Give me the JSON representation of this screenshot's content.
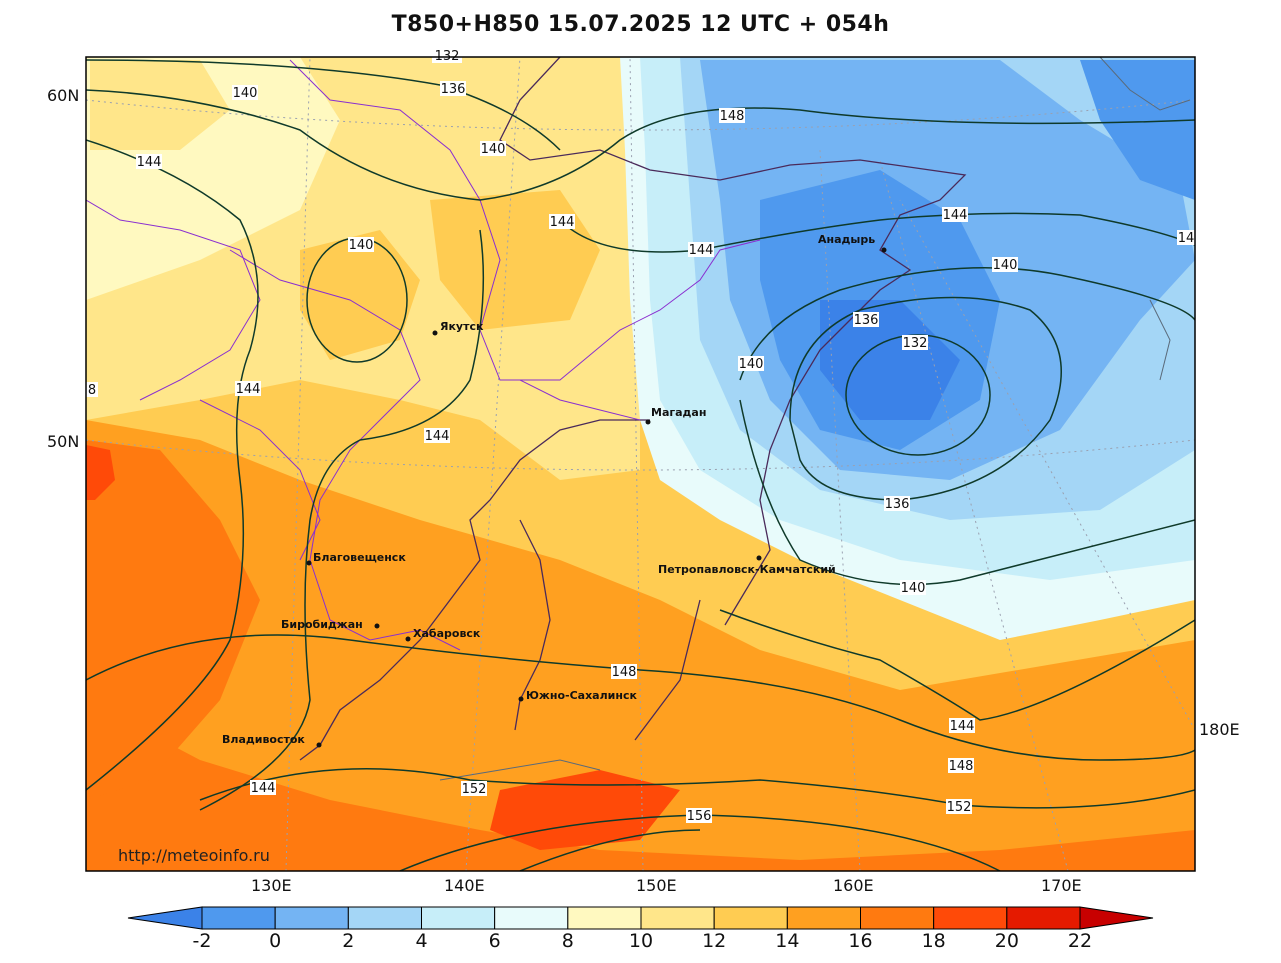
{
  "title": "T850+H850 15.07.2025 12 UTC + 054h",
  "watermark": "http://meteoinfo.ru",
  "lat_labels": [
    "60N",
    "50N"
  ],
  "lon_labels": [
    "130E",
    "140E",
    "150E",
    "160E",
    "170E",
    "180E"
  ],
  "colorbar": {
    "ticks": [
      "-2",
      "0",
      "2",
      "4",
      "6",
      "8",
      "10",
      "12",
      "14",
      "16",
      "18",
      "20",
      "22"
    ],
    "colors": [
      "#3b82e8",
      "#4f99ee",
      "#74b4f3",
      "#a4d6f6",
      "#c7eef9",
      "#e8fbfb",
      "#fff9c0",
      "#ffe68a",
      "#ffcc52",
      "#ffa020",
      "#ff7a10",
      "#ff4a08",
      "#e51a00",
      "#c80000"
    ]
  },
  "cities": [
    {
      "name": "Якутск",
      "id": "yakutsk"
    },
    {
      "name": "Магадан",
      "id": "magadan"
    },
    {
      "name": "Анадырь",
      "id": "anadyr"
    },
    {
      "name": "Благовещенск",
      "id": "blagoveshchensk"
    },
    {
      "name": "Биробиджан",
      "id": "birobidzhan"
    },
    {
      "name": "Хабаровск",
      "id": "khabarovsk"
    },
    {
      "name": "Петропавловск-Камчатский",
      "id": "petropavlovsk"
    },
    {
      "name": "Южно-Сахалинск",
      "id": "yuzhno"
    },
    {
      "name": "Владивосток",
      "id": "vladivostok"
    }
  ],
  "contour_labels": [
    "140",
    "136",
    "140",
    "144",
    "140",
    "144",
    "144",
    "144",
    "148",
    "144",
    "140",
    "132",
    "136",
    "140",
    "136",
    "140",
    "144",
    "148",
    "152",
    "156",
    "148",
    "152",
    "144",
    "144",
    "8",
    "14",
    "132"
  ]
}
